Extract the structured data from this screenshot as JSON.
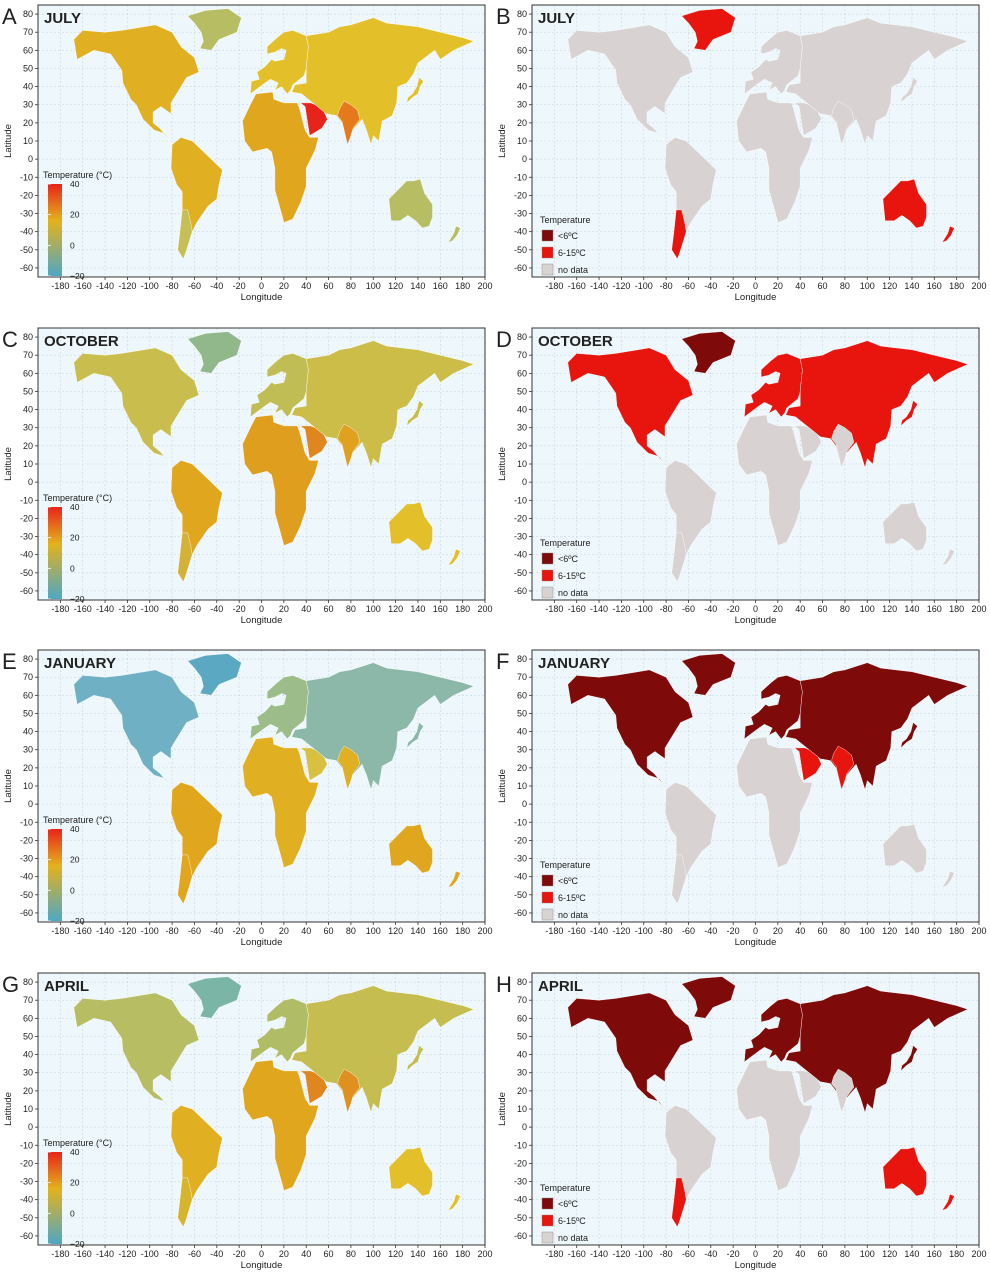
{
  "colors": {
    "ocean": "#eef7fb",
    "grid": "#c9d7e0",
    "frame": "#333333",
    "nodata": "#d9d2d2",
    "dark_red": "#7f0a0a",
    "red": "#e8140e",
    "grad_top": "#e8241a",
    "grad_mid": "#e3b21c",
    "grad_low": "#4fa7c4"
  },
  "axis": {
    "xlabel": "Longitude",
    "ylabel": "Latitude",
    "x_ticks": [
      "-180",
      "-160",
      "-140",
      "-120",
      "-100",
      "-80",
      "-60",
      "-40",
      "-20",
      "0",
      "20",
      "40",
      "60",
      "80",
      "100",
      "120",
      "140",
      "160",
      "180",
      "200"
    ],
    "y_ticks": [
      "-60",
      "-50",
      "-40",
      "-30",
      "-20",
      "-10",
      "0",
      "10",
      "20",
      "30",
      "40",
      "50",
      "60",
      "70",
      "80"
    ],
    "xlim": [
      -200,
      200
    ],
    "ylim": [
      -65,
      85
    ]
  },
  "continuous_legend": {
    "title": "Temperature (°C)",
    "ticks": [
      "40",
      "20",
      "0",
      "−20"
    ]
  },
  "category_legend": {
    "title": "Temperature",
    "items": [
      {
        "label": "<6ºC",
        "color": "#7f0a0a"
      },
      {
        "label": "6-15ºC",
        "color": "#e8140e"
      },
      {
        "label": "no data",
        "color": "#d9d2d2"
      }
    ]
  },
  "panels": [
    {
      "letter": "A",
      "month": "JULY",
      "kind": "continuous",
      "colors": {
        "na": "#e0b022",
        "greenland": "#b7bd62",
        "sa": "#e0b022",
        "sa_south": "#c5bf55",
        "af": "#e0a61e",
        "eu": "#e3c02a",
        "as": "#e3c02a",
        "au": "#b7bd62",
        "ar": "#e8241a",
        "ind": "#e57a1c"
      }
    },
    {
      "letter": "B",
      "month": "JULY",
      "kind": "category",
      "colors": {
        "na": "#d9d2d2",
        "greenland": "#e8140e",
        "sa": "#d9d2d2",
        "sa_south": "#e8140e",
        "af": "#d9d2d2",
        "eu": "#d9d2d2",
        "as": "#d9d2d2",
        "au": "#e8140e",
        "ar": "#d9d2d2",
        "ind": "#d9d2d2"
      }
    },
    {
      "letter": "C",
      "month": "OCTOBER",
      "kind": "continuous",
      "colors": {
        "na": "#c9bd4e",
        "greenland": "#90b88a",
        "sa": "#e0a61e",
        "sa_south": "#d4b238",
        "af": "#e09e1e",
        "eu": "#c0bd55",
        "as": "#cbbd48",
        "au": "#e3c02a",
        "ar": "#e0861e",
        "ind": "#e0a21e"
      }
    },
    {
      "letter": "D",
      "month": "OCTOBER",
      "kind": "category",
      "colors": {
        "na": "#e8140e",
        "greenland": "#7f0a0a",
        "sa": "#d9d2d2",
        "sa_south": "#d9d2d2",
        "af": "#d9d2d2",
        "eu": "#e8140e",
        "as": "#e8140e",
        "au": "#d9d2d2",
        "ar": "#d9d2d2",
        "ind": "#d9d2d2"
      }
    },
    {
      "letter": "E",
      "month": "JANUARY",
      "kind": "continuous",
      "colors": {
        "na": "#6fb0c4",
        "greenland": "#5aa8c2",
        "sa": "#e0a61e",
        "sa_south": "#e0a61e",
        "af": "#e0b022",
        "eu": "#9cbd8a",
        "as": "#8bb8a8",
        "au": "#e0a61e",
        "ar": "#d8c040",
        "ind": "#e0b022"
      }
    },
    {
      "letter": "F",
      "month": "JANUARY",
      "kind": "category",
      "colors": {
        "na": "#7f0a0a",
        "greenland": "#7f0a0a",
        "sa": "#d9d2d2",
        "sa_south": "#d9d2d2",
        "af": "#d9d2d2",
        "eu": "#7f0a0a",
        "as": "#7f0a0a",
        "au": "#d9d2d2",
        "ar": "#e8140e",
        "ind": "#e8140e"
      }
    },
    {
      "letter": "G",
      "month": "APRIL",
      "kind": "continuous",
      "colors": {
        "na": "#b7bd62",
        "greenland": "#7ab5a5",
        "sa": "#e0b022",
        "sa_south": "#d6b42c",
        "af": "#e0a61e",
        "eu": "#b0bd66",
        "as": "#c5bd50",
        "au": "#e3c02a",
        "ar": "#e0861e",
        "ind": "#e0901e"
      }
    },
    {
      "letter": "H",
      "month": "APRIL",
      "kind": "category",
      "colors": {
        "na": "#7f0a0a",
        "greenland": "#7f0a0a",
        "sa": "#d9d2d2",
        "sa_south": "#e8140e",
        "af": "#d9d2d2",
        "eu": "#7f0a0a",
        "as": "#7f0a0a",
        "au": "#e8140e",
        "ar": "#d9d2d2",
        "ind": "#d9d2d2"
      }
    }
  ]
}
